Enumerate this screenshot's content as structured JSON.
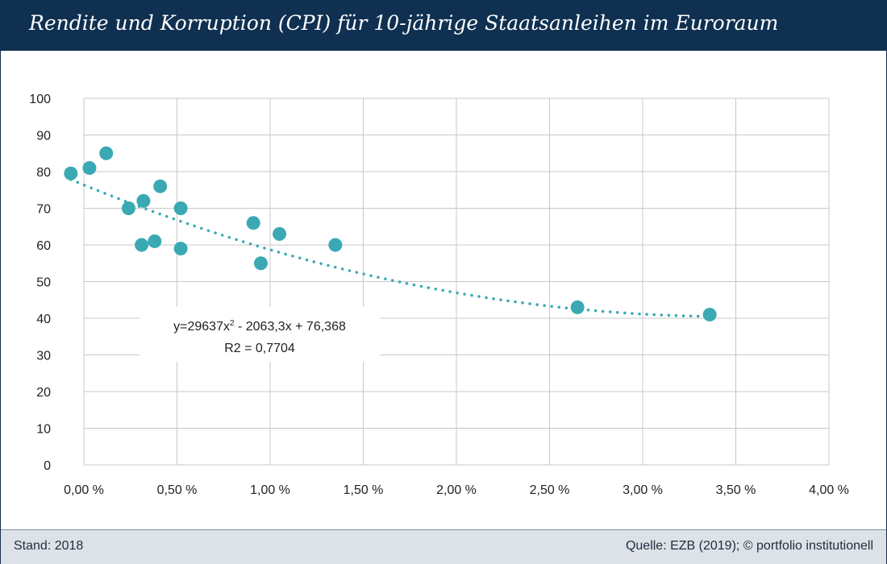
{
  "header": {
    "title": "Rendite und Korruption (CPI) für 10-jährige Staatsanleihen  im Euroraum"
  },
  "footer": {
    "left": "Stand: 2018",
    "right": "Quelle: EZB (2019); © portfolio institutionell"
  },
  "colors": {
    "title_bg": "#0f3050",
    "point": "#3aa9b3",
    "grid": "#c8c8c8",
    "footer_bg": "#dde2e8"
  },
  "chart_data": {
    "type": "scatter",
    "title": "Rendite und Korruption (CPI) für 10-jährige Staatsanleihen  im Euroraum",
    "xlabel": "",
    "ylabel": "",
    "xlim": [
      0,
      0.04
    ],
    "ylim": [
      0,
      100
    ],
    "grid": true,
    "x_ticks": [
      "0,00 %",
      "0,50 %",
      "1,00 %",
      "1,50 %",
      "2,00 %",
      "2,50 %",
      "3,00 %",
      "3,50 %",
      "4,00 %"
    ],
    "y_ticks": [
      "0",
      "10",
      "20",
      "30",
      "40",
      "50",
      "60",
      "70",
      "80",
      "90",
      "100"
    ],
    "points": [
      {
        "x": -0.0007,
        "y": 79.5
      },
      {
        "x": 0.0003,
        "y": 81
      },
      {
        "x": 0.0012,
        "y": 85
      },
      {
        "x": 0.0024,
        "y": 70
      },
      {
        "x": 0.0032,
        "y": 72
      },
      {
        "x": 0.0031,
        "y": 60
      },
      {
        "x": 0.0038,
        "y": 61
      },
      {
        "x": 0.0041,
        "y": 76
      },
      {
        "x": 0.0052,
        "y": 70
      },
      {
        "x": 0.0052,
        "y": 59
      },
      {
        "x": 0.0091,
        "y": 66
      },
      {
        "x": 0.0095,
        "y": 55
      },
      {
        "x": 0.0105,
        "y": 63
      },
      {
        "x": 0.0135,
        "y": 60
      },
      {
        "x": 0.0265,
        "y": 43
      },
      {
        "x": 0.0336,
        "y": 41
      }
    ],
    "trendline": {
      "type": "polynomial",
      "coefficients": [
        29637,
        -2063.3,
        76.368
      ],
      "x_range": [
        -0.0007,
        0.0336
      ]
    },
    "annotation": {
      "equation_prefix": "y=29637x",
      "equation_exp": "2",
      "equation_suffix": " - 2063,3x + 76,368",
      "r2": "R2 = 0,7704"
    }
  }
}
